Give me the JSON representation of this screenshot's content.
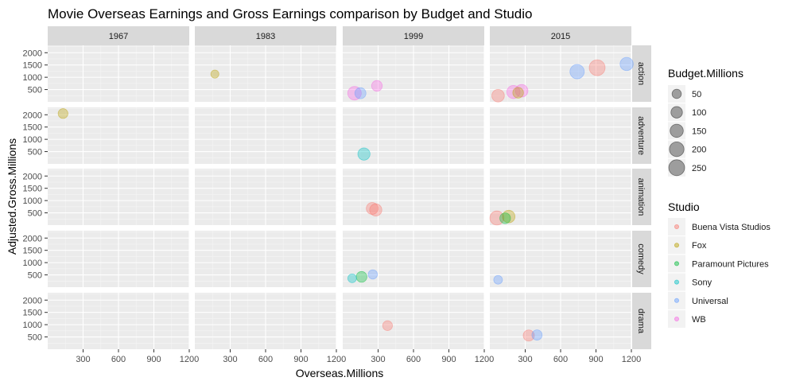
{
  "chart_data": {
    "type": "scatter",
    "title": "Movie Overseas Earnings and Gross Earnings comparison by Budget and Studio",
    "xlabel": "Overseas.Millions",
    "ylabel": "Adjusted.Gross.Millions",
    "xlim": [
      0,
      1200
    ],
    "ylim": [
      0,
      2300
    ],
    "x_ticks": [
      300,
      600,
      900,
      1200
    ],
    "y_ticks": [
      500,
      1000,
      1500,
      2000
    ],
    "facet_cols": [
      "1967",
      "1983",
      "1999",
      "2015"
    ],
    "facet_rows": [
      "action",
      "adventure",
      "animation",
      "comedy",
      "drama"
    ],
    "grid": true,
    "legend_placement": "right",
    "size_legend": {
      "title": "Budget.Millions",
      "values": [
        50,
        100,
        150,
        200,
        250
      ]
    },
    "color_legend": {
      "title": "Studio",
      "entries": [
        {
          "name": "Buena Vista Studios",
          "color": "#f8766d"
        },
        {
          "name": "Fox",
          "color": "#b79f00"
        },
        {
          "name": "Paramount Pictures",
          "color": "#00ba38"
        },
        {
          "name": "Sony",
          "color": "#00bfc4"
        },
        {
          "name": "Universal",
          "color": "#619cff"
        },
        {
          "name": "WB",
          "color": "#f564e3"
        }
      ]
    },
    "points": [
      {
        "year": "1967",
        "genre": "adventure",
        "x": 130,
        "y": 2050,
        "budget": 60,
        "studio": "Fox"
      },
      {
        "year": "1983",
        "genre": "action",
        "x": 170,
        "y": 1130,
        "budget": 30,
        "studio": "Fox"
      },
      {
        "year": "1999",
        "genre": "action",
        "x": 100,
        "y": 350,
        "budget": 160,
        "studio": "WB"
      },
      {
        "year": "1999",
        "genre": "action",
        "x": 150,
        "y": 350,
        "budget": 90,
        "studio": "Universal"
      },
      {
        "year": "1999",
        "genre": "action",
        "x": 290,
        "y": 650,
        "budget": 80,
        "studio": "WB"
      },
      {
        "year": "1999",
        "genre": "adventure",
        "x": 180,
        "y": 400,
        "budget": 120,
        "studio": "Sony"
      },
      {
        "year": "1999",
        "genre": "animation",
        "x": 250,
        "y": 680,
        "budget": 110,
        "studio": "Buena Vista Studios"
      },
      {
        "year": "1999",
        "genre": "animation",
        "x": 280,
        "y": 620,
        "budget": 120,
        "studio": "Buena Vista Studios"
      },
      {
        "year": "1999",
        "genre": "comedy",
        "x": 80,
        "y": 360,
        "budget": 40,
        "studio": "Sony"
      },
      {
        "year": "1999",
        "genre": "comedy",
        "x": 160,
        "y": 420,
        "budget": 80,
        "studio": "Paramount Pictures"
      },
      {
        "year": "1999",
        "genre": "comedy",
        "x": 255,
        "y": 520,
        "budget": 50,
        "studio": "Universal"
      },
      {
        "year": "1999",
        "genre": "drama",
        "x": 380,
        "y": 960,
        "budget": 60,
        "studio": "Buena Vista Studios"
      },
      {
        "year": "2015",
        "genre": "action",
        "x": 70,
        "y": 250,
        "budget": 130,
        "studio": "Buena Vista Studios"
      },
      {
        "year": "2015",
        "genre": "action",
        "x": 200,
        "y": 400,
        "budget": 150,
        "studio": "WB"
      },
      {
        "year": "2015",
        "genre": "action",
        "x": 240,
        "y": 370,
        "budget": 80,
        "studio": "Fox"
      },
      {
        "year": "2015",
        "genre": "action",
        "x": 270,
        "y": 450,
        "budget": 130,
        "studio": "WB"
      },
      {
        "year": "2015",
        "genre": "action",
        "x": 740,
        "y": 1230,
        "budget": 190,
        "studio": "Universal"
      },
      {
        "year": "2015",
        "genre": "action",
        "x": 910,
        "y": 1390,
        "budget": 250,
        "studio": "Buena Vista Studios"
      },
      {
        "year": "2015",
        "genre": "action",
        "x": 1160,
        "y": 1540,
        "budget": 150,
        "studio": "Universal"
      },
      {
        "year": "2015",
        "genre": "animation",
        "x": 60,
        "y": 290,
        "budget": 180,
        "studio": "Buena Vista Studios"
      },
      {
        "year": "2015",
        "genre": "animation",
        "x": 130,
        "y": 280,
        "budget": 80,
        "studio": "Paramount Pictures"
      },
      {
        "year": "2015",
        "genre": "animation",
        "x": 160,
        "y": 350,
        "budget": 130,
        "studio": "Fox"
      },
      {
        "year": "2015",
        "genre": "comedy",
        "x": 70,
        "y": 300,
        "budget": 40,
        "studio": "Universal"
      },
      {
        "year": "2015",
        "genre": "drama",
        "x": 330,
        "y": 560,
        "budget": 90,
        "studio": "Buena Vista Studios"
      },
      {
        "year": "2015",
        "genre": "drama",
        "x": 400,
        "y": 580,
        "budget": 70,
        "studio": "Universal"
      }
    ]
  }
}
